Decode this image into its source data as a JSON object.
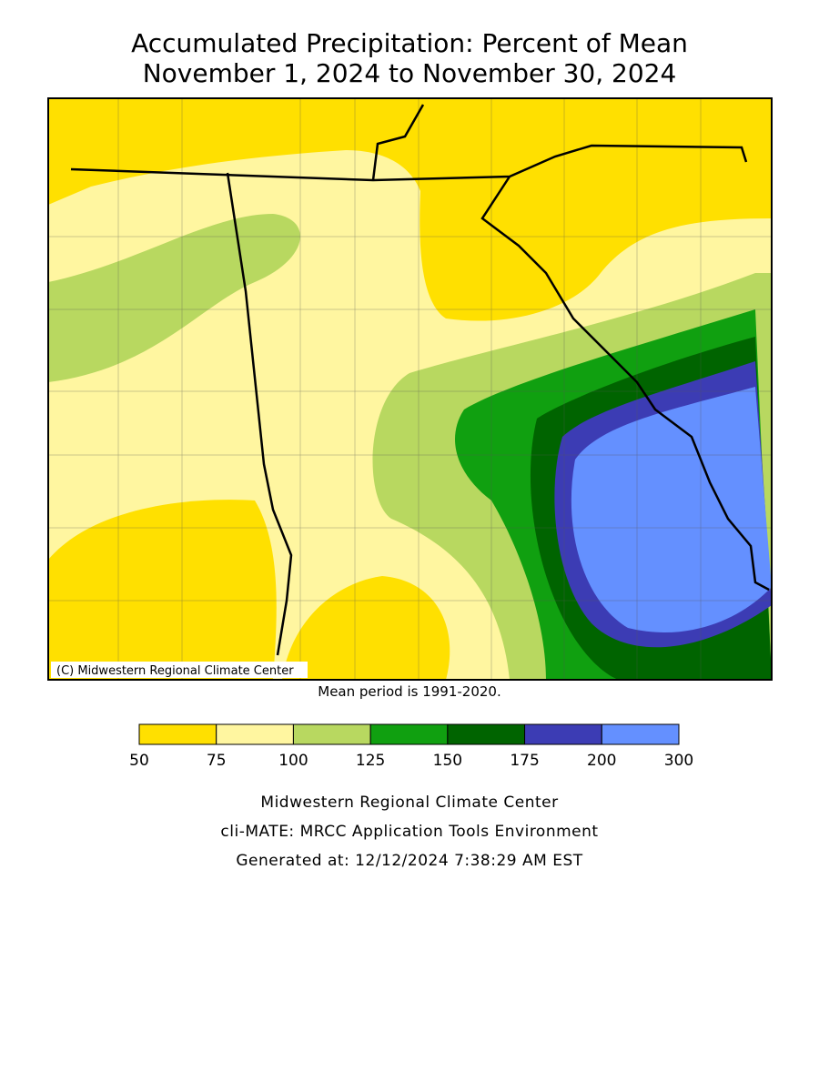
{
  "title": [
    "Accumulated Precipitation: Percent of Mean",
    "November 1, 2024 to November 30, 2024"
  ],
  "copyright": "(C) Midwestern Regional Climate Center",
  "mean_period": "Mean period is 1991-2020.",
  "legend": {
    "bounds": [
      50,
      75,
      100,
      125,
      150,
      175,
      200,
      300
    ],
    "colors": [
      "#ffe000",
      "#fff6a0",
      "#b8d860",
      "#10a010",
      "#006400",
      "#3c3cb4",
      "#6490ff"
    ]
  },
  "footer": [
    "Midwestern Regional Climate Center",
    "cli-MATE: MRCC Application Tools Environment",
    "Generated at: 12/12/2024 7:38:29 AM EST"
  ]
}
